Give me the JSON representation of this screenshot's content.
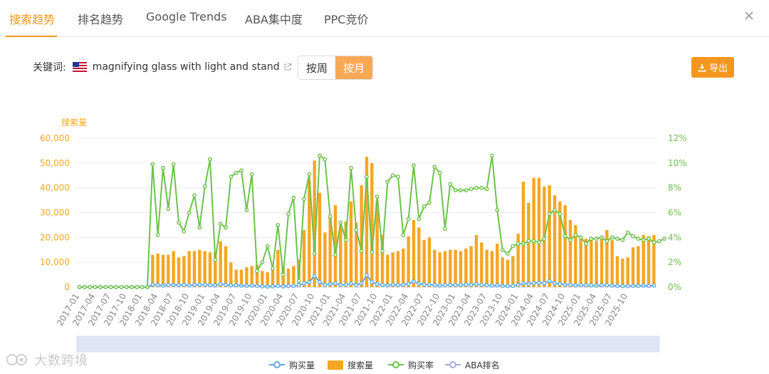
{
  "tabs": [
    {
      "label": "搜索趋势",
      "active": true
    },
    {
      "label": "排名趋势",
      "active": false
    },
    {
      "label": "Google Trends",
      "active": false
    },
    {
      "label": "ABA集中度",
      "active": false
    },
    {
      "label": "PPC竞价",
      "active": false
    }
  ],
  "keyword": {
    "label": "关键词:",
    "value": "magnifying glass with light and stand",
    "flag_icon": "us-flag-icon",
    "link_icon": "external-link-icon"
  },
  "period_toggle": {
    "options": [
      "按周",
      "按月"
    ],
    "selected": "按月"
  },
  "export_label": "导出",
  "watermark": "大数跨境",
  "colors": {
    "accent": "#f5961e",
    "bar": "#f5a623",
    "purchase_volume": "#5aa9e6",
    "purchase_rate": "#6cc24a",
    "aba_rank": "#a4a9e0",
    "left_axis_text": "#f5a623",
    "right_axis_text": "#6cc24a"
  },
  "chart_data": {
    "type": "bar",
    "ylabel_left": "搜索量",
    "yleft_ticks": [
      "0",
      "10,000",
      "20,000",
      "30,000",
      "40,000",
      "50,000",
      "60,000"
    ],
    "yleft_lim": [
      0,
      60000
    ],
    "yright_ticks": [
      "0%",
      "2%",
      "4%",
      "6%",
      "8%",
      "10%",
      "12%"
    ],
    "yright_lim": [
      0,
      12
    ],
    "x_tick_labels": [
      "2017-01",
      "2017-04",
      "2017-07",
      "2017-10",
      "2018-01",
      "2018-04",
      "2018-07",
      "2018-10",
      "2019-01",
      "2019-04",
      "2019-07",
      "2019-10",
      "2020-01",
      "2020-04",
      "2020-07",
      "2020-10",
      "2021-01",
      "2021-04",
      "2021-07",
      "2021-10",
      "2022-01",
      "2022-04",
      "2022-07",
      "2022-10",
      "2023-01",
      "2023-04",
      "2023-07",
      "2023-10",
      "2024-01",
      "2024-04",
      "2024-07",
      "2024-10",
      "2025-01",
      "2025-04",
      "2025-07",
      "2025-10"
    ],
    "months_start": "2017-01",
    "legend": [
      "购买量",
      "搜索量",
      "购买率",
      "ABA排名"
    ],
    "legend_position": "bottom",
    "series": [
      {
        "name": "搜索量",
        "type": "bar",
        "axis": "left",
        "values": [
          0,
          0,
          0,
          0,
          0,
          0,
          0,
          0,
          0,
          0,
          0,
          0,
          0,
          0,
          13000,
          13500,
          13000,
          13000,
          14500,
          12000,
          12500,
          14500,
          14500,
          15000,
          14500,
          14000,
          14000,
          18500,
          16500,
          10000,
          7000,
          7000,
          8000,
          8500,
          9000,
          6500,
          6000,
          7000,
          15000,
          8000,
          7500,
          8500,
          11000,
          23000,
          43000,
          51000,
          38000,
          22000,
          28000,
          33000,
          24500,
          26500,
          34500,
          26000,
          41000,
          52500,
          50000,
          34500,
          21000,
          13000,
          14000,
          14500,
          15500,
          20500,
          27000,
          24000,
          19000,
          20000,
          15000,
          14000,
          14500,
          15000,
          15000,
          14500,
          15500,
          16500,
          21000,
          18000,
          15000,
          14500,
          17500,
          12000,
          11000,
          12500,
          21500,
          42500,
          34000,
          44000,
          44000,
          40500,
          41000,
          37000,
          34500,
          33000,
          27000,
          25000,
          20000,
          19500,
          19000,
          18500,
          20000,
          23000,
          19000,
          12500,
          11500,
          12000,
          16000,
          16500,
          21000,
          20500,
          21000
        ]
      },
      {
        "name": "购买量",
        "type": "line",
        "axis": "left",
        "values": [
          0,
          0,
          0,
          0,
          0,
          0,
          0,
          0,
          0,
          0,
          0,
          0,
          0,
          0,
          1000,
          800,
          600,
          900,
          900,
          800,
          900,
          700,
          900,
          1000,
          900,
          800,
          700,
          1200,
          900,
          700,
          800,
          600,
          500,
          600,
          500,
          300,
          200,
          300,
          500,
          300,
          400,
          500,
          800,
          1500,
          2000,
          4500,
          2000,
          900,
          1200,
          1500,
          800,
          1000,
          1400,
          800,
          1500,
          4800,
          2000,
          1200,
          900,
          700,
          1000,
          800,
          900,
          1300,
          2200,
          1400,
          1000,
          1000,
          800,
          600,
          800,
          800,
          900,
          800,
          1000,
          900,
          1200,
          900,
          800,
          600,
          700,
          500,
          400,
          500,
          800,
          1500,
          1300,
          1600,
          1700,
          1600,
          2400,
          1500,
          1300,
          1000,
          900,
          700,
          800,
          700,
          700,
          600,
          700,
          800,
          600,
          500,
          400,
          400,
          500,
          500,
          600,
          500,
          600
        ]
      },
      {
        "name": "购买率",
        "type": "line",
        "axis": "right",
        "values": [
          0,
          0,
          0,
          0,
          0,
          0,
          0,
          0,
          0,
          0,
          0,
          0,
          0,
          0,
          9.9,
          4.2,
          9.6,
          6.3,
          9.9,
          5.2,
          4.5,
          6.0,
          7.4,
          4.8,
          8.1,
          10.3,
          2.2,
          5.1,
          4.8,
          8.9,
          9.2,
          9.4,
          6.2,
          9.1,
          1.3,
          2.0,
          3.3,
          1.5,
          5.0,
          1.0,
          5.9,
          7.2,
          0.5,
          7.1,
          9.1,
          2.7,
          10.6,
          10.3,
          5.7,
          2.6,
          5.2,
          3.8,
          9.6,
          4.6,
          2.9,
          8.9,
          2.8,
          7.3,
          2.9,
          8.5,
          9.0,
          8.9,
          4.2,
          5.5,
          9.8,
          5.5,
          6.5,
          6.8,
          9.7,
          9.2,
          4.7,
          8.3,
          7.8,
          7.8,
          7.8,
          7.9,
          8.0,
          8.0,
          7.9,
          10.6,
          6.2,
          3.0,
          2.7,
          3.3,
          3.5,
          3.5,
          3.7,
          3.7,
          3.6,
          3.9,
          5.9,
          6.2,
          5.9,
          4.1,
          3.8,
          4.2,
          4.0,
          3.5,
          3.9,
          3.9,
          4.0,
          3.7,
          4.0,
          3.9,
          3.8,
          4.4,
          4.1,
          3.9,
          3.8,
          3.9,
          3.6,
          3.7,
          3.9
        ]
      },
      {
        "name": "ABA排名",
        "type": "line",
        "axis": "right",
        "values": [
          null,
          null,
          null,
          null,
          null,
          null,
          null,
          null,
          null,
          null,
          null,
          null,
          null,
          null,
          null,
          null,
          null,
          null,
          null,
          null,
          null,
          null,
          null,
          null,
          null,
          null,
          null,
          null,
          null,
          null,
          null,
          null,
          null,
          null,
          null,
          null,
          null,
          null,
          null,
          null,
          null,
          null,
          null,
          null,
          null,
          null,
          null,
          null,
          null,
          null,
          null,
          null,
          null,
          null,
          null,
          null,
          null,
          null,
          null,
          null,
          null,
          null,
          null,
          null,
          null,
          null,
          null,
          null,
          null,
          null,
          null,
          null,
          null,
          null,
          null,
          null,
          null,
          null,
          null,
          null,
          null,
          null,
          null,
          null,
          null,
          null,
          null,
          null,
          null,
          null,
          null,
          null,
          null,
          null,
          null,
          null,
          null,
          null,
          null,
          null,
          null,
          null,
          null,
          null,
          null,
          null,
          null,
          null,
          null,
          null,
          null,
          null,
          null
        ]
      }
    ]
  }
}
